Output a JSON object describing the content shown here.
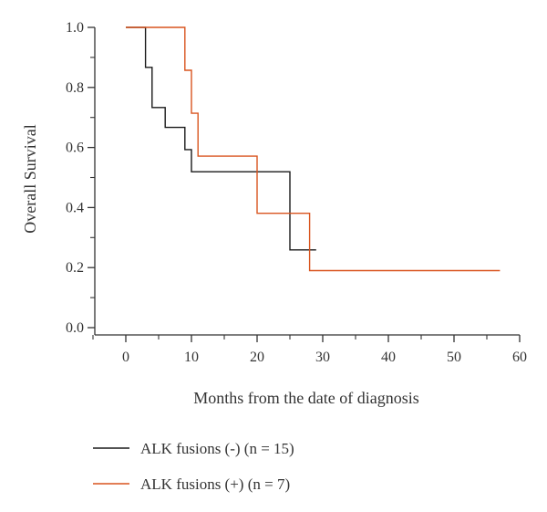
{
  "chart_data": {
    "type": "line",
    "subtype": "kaplan-meier step",
    "xlabel": "Months from the date of diagnosis",
    "ylabel": "Overall Survival",
    "xlim": [
      -5,
      60
    ],
    "ylim": [
      0.0,
      1.0
    ],
    "x_ticks": [
      0,
      10,
      20,
      30,
      40,
      50,
      60
    ],
    "x_tick_labels": [
      "0",
      "10",
      "20",
      "30",
      "40",
      "50",
      "60"
    ],
    "y_ticks": [
      0.0,
      0.2,
      0.4,
      0.6,
      0.8,
      1.0
    ],
    "y_tick_labels": [
      "0.0",
      "0.2",
      "0.4",
      "0.6",
      "0.8",
      "1.0"
    ],
    "y_minor_ticks": [
      0.1,
      0.3,
      0.5,
      0.7,
      0.9
    ],
    "grid": false,
    "legend_position": "bottom",
    "series": [
      {
        "name": "ALK fusions (-) (n = 15)",
        "color": "#1a1a1a",
        "points": [
          [
            0,
            1.0
          ],
          [
            3,
            1.0
          ],
          [
            3,
            0.867
          ],
          [
            4,
            0.867
          ],
          [
            4,
            0.733
          ],
          [
            6,
            0.733
          ],
          [
            6,
            0.667
          ],
          [
            9,
            0.667
          ],
          [
            9,
            0.593
          ],
          [
            10,
            0.593
          ],
          [
            10,
            0.519
          ],
          [
            25,
            0.519
          ],
          [
            25,
            0.259
          ],
          [
            29,
            0.259
          ]
        ]
      },
      {
        "name": "ALK fusions (+) (n = 7)",
        "color": "#d9541e",
        "points": [
          [
            0,
            1.0
          ],
          [
            9,
            1.0
          ],
          [
            9,
            0.857
          ],
          [
            10,
            0.857
          ],
          [
            10,
            0.714
          ],
          [
            11,
            0.714
          ],
          [
            11,
            0.571
          ],
          [
            20,
            0.571
          ],
          [
            20,
            0.381
          ],
          [
            28,
            0.381
          ],
          [
            28,
            0.19
          ],
          [
            57,
            0.19
          ]
        ]
      }
    ]
  }
}
